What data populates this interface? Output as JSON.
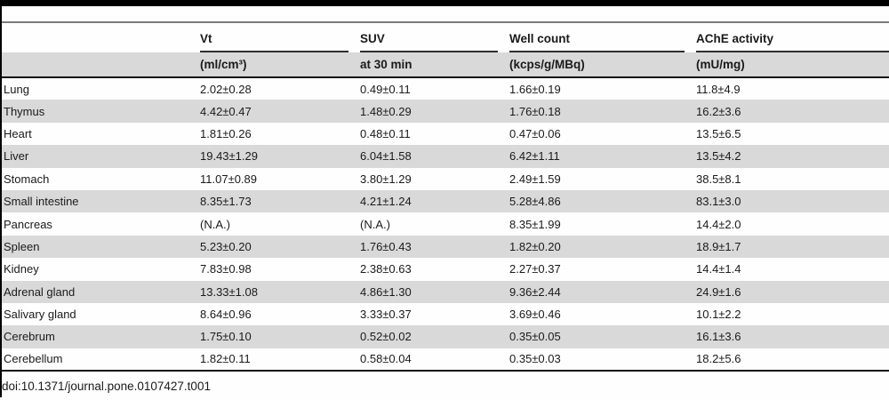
{
  "table": {
    "columns": [
      {
        "label": "",
        "unit": ""
      },
      {
        "label": "Vt",
        "unit": "(ml/cm³)"
      },
      {
        "label": "SUV",
        "unit": "at 30 min"
      },
      {
        "label": "Well count",
        "unit": "(kcps/g/MBq)"
      },
      {
        "label": "AChE activity",
        "unit": "(mU/mg)"
      }
    ],
    "rows": [
      {
        "organ": "Lung",
        "vt": "2.02±0.28",
        "suv": "0.49±0.11",
        "well_count": "1.66±0.19",
        "ache_activity": "11.8±4.9"
      },
      {
        "organ": "Thymus",
        "vt": "4.42±0.47",
        "suv": "1.48±0.29",
        "well_count": "1.76±0.18",
        "ache_activity": "16.2±3.6"
      },
      {
        "organ": "Heart",
        "vt": "1.81±0.26",
        "suv": "0.48±0.11",
        "well_count": "0.47±0.06",
        "ache_activity": "13.5±6.5"
      },
      {
        "organ": "Liver",
        "vt": "19.43±1.29",
        "suv": "6.04±1.58",
        "well_count": "6.42±1.11",
        "ache_activity": "13.5±4.2"
      },
      {
        "organ": "Stomach",
        "vt": "11.07±0.89",
        "suv": "3.80±1.29",
        "well_count": "2.49±1.59",
        "ache_activity": "38.5±8.1"
      },
      {
        "organ": "Small intestine",
        "vt": "8.35±1.73",
        "suv": "4.21±1.24",
        "well_count": "5.28±4.86",
        "ache_activity": "83.1±3.0"
      },
      {
        "organ": "Pancreas",
        "vt": "(N.A.)",
        "suv": "(N.A.)",
        "well_count": "8.35±1.99",
        "ache_activity": "14.4±2.0"
      },
      {
        "organ": "Spleen",
        "vt": "5.23±0.20",
        "suv": "1.76±0.43",
        "well_count": "1.82±0.20",
        "ache_activity": "18.9±1.7"
      },
      {
        "organ": "Kidney",
        "vt": "7.83±0.98",
        "suv": "2.38±0.63",
        "well_count": "2.27±0.37",
        "ache_activity": "14.4±1.4"
      },
      {
        "organ": "Adrenal gland",
        "vt": "13.33±1.08",
        "suv": "4.86±1.30",
        "well_count": "9.36±2.44",
        "ache_activity": "24.9±1.6"
      },
      {
        "organ": "Salivary gland",
        "vt": "8.64±0.96",
        "suv": "3.33±0.37",
        "well_count": "3.69±0.46",
        "ache_activity": "10.1±2.2"
      },
      {
        "organ": "Cerebrum",
        "vt": "1.75±0.10",
        "suv": "0.52±0.02",
        "well_count": "0.35±0.05",
        "ache_activity": "16.1±3.6"
      },
      {
        "organ": "Cerebellum",
        "vt": "1.82±0.11",
        "suv": "0.58±0.04",
        "well_count": "0.35±0.03",
        "ache_activity": "18.2±5.6"
      }
    ]
  },
  "footer": {
    "doi": "doi:10.1371/journal.pone.0107427.t001"
  },
  "colors": {
    "row_shade": "#d9d9d9",
    "rule_black": "#0d0d0d",
    "rule_gray": "#7a7a7a",
    "text": "#1a1a1a"
  }
}
